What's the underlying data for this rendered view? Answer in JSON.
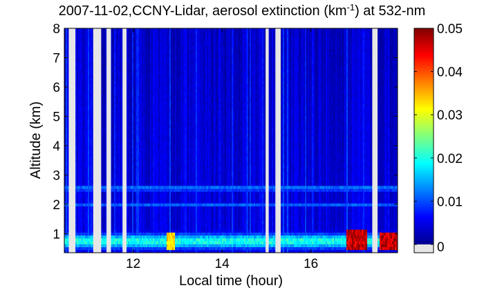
{
  "chart_data": {
    "type": "heatmap",
    "title": "2007-11-02,CCNY-Lidar, aerosol extinction (km",
    "title_sup": "-1",
    "title_suffix": ") at 532-nm",
    "xlabel": "Local time (hour)",
    "ylabel": "Altitude (km)",
    "xlim": [
      10.45,
      17.95
    ],
    "ylim": [
      0.35,
      8.0
    ],
    "x_ticks": [
      12,
      14,
      16
    ],
    "x_tick_labels": [
      "12",
      "14",
      "16"
    ],
    "y_ticks": [
      1,
      2,
      3,
      4,
      5,
      6,
      7,
      8
    ],
    "y_tick_labels": [
      "1",
      "2",
      "3",
      "4",
      "5",
      "6",
      "7",
      "8"
    ],
    "colorbar": {
      "min": 0,
      "max": 0.05,
      "ticks": [
        0,
        0.01,
        0.02,
        0.03,
        0.04,
        0.05
      ],
      "tick_labels": [
        "0",
        "0.01",
        "0.02",
        "0.03",
        "0.04",
        "0.05"
      ],
      "colormap": "jet",
      "bottom_patch_color": "#e6e6e6"
    },
    "missing_data_color": "#e6e6e6",
    "data_gaps_hours": [
      [
        10.55,
        10.7
      ],
      [
        11.1,
        11.28
      ],
      [
        11.4,
        11.5
      ],
      [
        11.76,
        11.85
      ],
      [
        14.98,
        15.05
      ],
      [
        15.2,
        15.32
      ],
      [
        17.38,
        17.5
      ]
    ],
    "aerosol_layers": [
      {
        "from": 10.45,
        "to": 17.95,
        "center_km": 2.55,
        "width_km": 0.1,
        "extinction": 0.013
      },
      {
        "from": 10.45,
        "to": 17.95,
        "center_km": 2.0,
        "width_km": 0.08,
        "extinction": 0.011
      },
      {
        "from": 10.45,
        "to": 17.95,
        "center_km": 0.75,
        "width_km": 0.28,
        "extinction": 0.02
      }
    ],
    "high_extinction_regions": [
      {
        "from": 12.75,
        "to": 12.95,
        "bottom_km": 0.45,
        "top_km": 1.05,
        "extinction": 0.036
      },
      {
        "from": 16.8,
        "to": 17.25,
        "bottom_km": 0.45,
        "top_km": 1.15,
        "extinction": 0.05
      },
      {
        "from": 17.55,
        "to": 17.95,
        "bottom_km": 0.45,
        "top_km": 1.05,
        "extinction": 0.05
      }
    ]
  }
}
